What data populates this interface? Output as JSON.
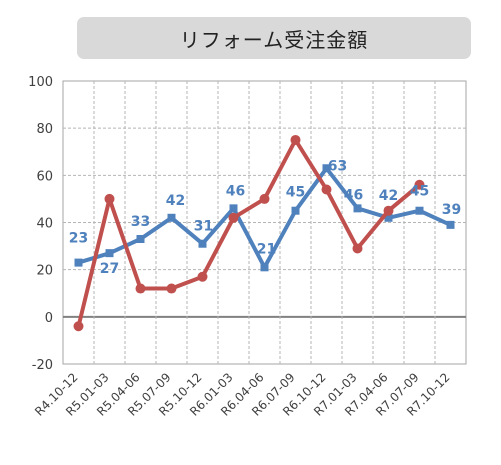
{
  "chart_data": {
    "type": "line",
    "title": "リフォーム受注金額",
    "categories": [
      "R4.10-12",
      "R5.01-03",
      "R5.04-06",
      "R5.07-09",
      "R5.10-12",
      "R6.01-03",
      "R6.04-06",
      "R6.07-09",
      "R6.10-12",
      "R7.01-03",
      "R7.04-06",
      "R7.07-09",
      "R7.10-12"
    ],
    "ylim": [
      -20,
      100
    ],
    "yticks": [
      -20,
      0,
      20,
      40,
      60,
      80,
      100
    ],
    "grid": true,
    "legend": "none",
    "series": [
      {
        "color": "#4f81bd",
        "marker": "square",
        "values": [
          23,
          27,
          33,
          42,
          31,
          46,
          21,
          45,
          63,
          46,
          42,
          45,
          39
        ],
        "labels": [
          "23",
          "27",
          "33",
          "42",
          "31",
          "46",
          "21",
          "45",
          "63",
          "46",
          "42",
          "45",
          "39"
        ]
      },
      {
        "color": "#c0504d",
        "marker": "circle",
        "values": [
          -4,
          50,
          12,
          12,
          17,
          42,
          50,
          75,
          54,
          29,
          45,
          56,
          null
        ],
        "labels": []
      }
    ]
  }
}
